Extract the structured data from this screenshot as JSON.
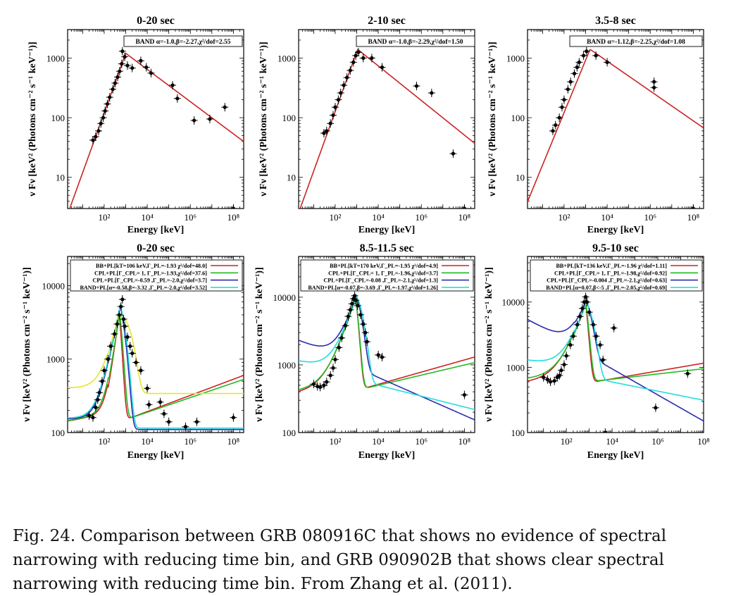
{
  "caption": "Fig. 24. Comparison between GRB 080916C that shows no evidence of spectral narrowing with reducing time bin, and GRB 090902B that shows clear spectral narrowing with reducing time bin. From Zhang et al. (2011).",
  "colors": {
    "red": "#cc2222",
    "green": "#22bb22",
    "blue": "#2b2bb0",
    "cyan": "#22dddd",
    "yellow": "#e6e62a",
    "black": "#000000"
  },
  "axis_labels": {
    "x": "Energy [keV]",
    "y": "ν F<sub>ν</sub> [keV² (Photons cm⁻² s⁻¹ keV⁻¹)]",
    "y_text": "ν Fν [keV² (Photons cm⁻² s⁻¹ keV⁻¹)]"
  },
  "chart_data": [
    {
      "type": "scatter",
      "title": "0-20 sec",
      "xlabel": "Energy [keV]",
      "ylabel": "ν Fν [keV² (Photons cm⁻² s⁻¹ keV⁻¹)]",
      "xscale": "log",
      "yscale": "log",
      "xlim": [
        2,
        300000000.0
      ],
      "ylim": [
        3,
        3000
      ],
      "x_ticks": [
        {
          "v": 100,
          "t": "10²"
        },
        {
          "v": 10000,
          "t": "10⁴"
        },
        {
          "v": 1000000,
          "t": "10⁶"
        },
        {
          "v": 100000000,
          "t": "10⁸"
        }
      ],
      "y_ticks": [
        {
          "v": 10,
          "t": "10"
        },
        {
          "v": 100,
          "t": "100"
        },
        {
          "v": 1000,
          "t": "1000"
        }
      ],
      "legend": [
        "BAND α=-1.0,β=-2.27,χ²/dof=2.55"
      ],
      "series": [
        {
          "name": "BAND α=-1.0,β=-2.27,χ²/dof=2.55",
          "color": "red",
          "model": "band",
          "peak": 1000,
          "peak_value": 1200,
          "alpha_slope": 1.0,
          "beta_slope": -0.27
        }
      ],
      "points": [
        [
          30,
          42
        ],
        [
          40,
          48
        ],
        [
          55,
          60
        ],
        [
          70,
          80
        ],
        [
          90,
          100
        ],
        [
          110,
          130
        ],
        [
          140,
          170
        ],
        [
          180,
          220
        ],
        [
          250,
          300
        ],
        [
          320,
          380
        ],
        [
          420,
          480
        ],
        [
          520,
          600
        ],
        [
          650,
          800
        ],
        [
          700,
          1300
        ],
        [
          900,
          1050
        ],
        [
          1200,
          750
        ],
        [
          2000,
          680
        ],
        [
          5000,
          900
        ],
        [
          9000,
          700
        ],
        [
          15000,
          560
        ],
        [
          150000,
          350
        ],
        [
          250000,
          210
        ],
        [
          1500000,
          90
        ],
        [
          8000000,
          95
        ],
        [
          40000000,
          150
        ],
        [
          100000000,
          3
        ]
      ]
    },
    {
      "type": "scatter",
      "title": "2-10 sec",
      "xlabel": "Energy [keV]",
      "ylabel": "ν Fν [keV² (Photons cm⁻² s⁻¹ keV⁻¹)]",
      "xscale": "log",
      "yscale": "log",
      "xlim": [
        2,
        300000000.0
      ],
      "ylim": [
        3,
        3000
      ],
      "x_ticks": [
        {
          "v": 100,
          "t": "10²"
        },
        {
          "v": 10000,
          "t": "10⁴"
        },
        {
          "v": 1000000,
          "t": "10⁶"
        },
        {
          "v": 100000000,
          "t": "10⁸"
        }
      ],
      "y_ticks": [
        {
          "v": 10,
          "t": "10"
        },
        {
          "v": 100,
          "t": "100"
        },
        {
          "v": 1000,
          "t": "1000"
        }
      ],
      "legend": [
        "BAND α=-1.0,β=-2.29,χ²/dof=1.50"
      ],
      "series": [
        {
          "name": "BAND α=-1.0,β=-2.29,χ²/dof=1.50",
          "color": "red",
          "model": "band",
          "peak": 1100,
          "peak_value": 1400,
          "alpha_slope": 1.0,
          "beta_slope": -0.29
        }
      ],
      "points": [
        [
          30,
          55
        ],
        [
          40,
          60
        ],
        [
          60,
          80
        ],
        [
          80,
          110
        ],
        [
          100,
          150
        ],
        [
          140,
          200
        ],
        [
          180,
          260
        ],
        [
          250,
          350
        ],
        [
          350,
          470
        ],
        [
          500,
          620
        ],
        [
          700,
          850
        ],
        [
          900,
          1100
        ],
        [
          1200,
          1250
        ],
        [
          2000,
          1000
        ],
        [
          5000,
          1000
        ],
        [
          15000,
          700
        ],
        [
          600000,
          340
        ],
        [
          3000000,
          260
        ],
        [
          30000000,
          25
        ],
        [
          100000000,
          3
        ]
      ]
    },
    {
      "type": "scatter",
      "title": "3.5-8 sec",
      "xlabel": "Energy [keV]",
      "ylabel": "ν Fν [keV² (Photons cm⁻² s⁻¹ keV⁻¹)]",
      "xscale": "log",
      "yscale": "log",
      "xlim": [
        2,
        300000000.0
      ],
      "ylim": [
        3,
        3000
      ],
      "x_ticks": [
        {
          "v": 100,
          "t": "10²"
        },
        {
          "v": 10000,
          "t": "10⁴"
        },
        {
          "v": 1000000,
          "t": "10⁶"
        },
        {
          "v": 100000000,
          "t": "10⁸"
        }
      ],
      "y_ticks": [
        {
          "v": 10,
          "t": "10"
        },
        {
          "v": 100,
          "t": "100"
        },
        {
          "v": 1000,
          "t": "1000"
        }
      ],
      "legend": [
        "BAND α=-1.12,β=-2.25,χ²/dof=1.08"
      ],
      "series": [
        {
          "name": "BAND α=-1.12,β=-2.25,χ²/dof=1.08",
          "color": "red",
          "model": "band",
          "peak": 1600,
          "peak_value": 1400,
          "alpha_slope": 0.88,
          "beta_slope": -0.25
        }
      ],
      "points": [
        [
          30,
          60
        ],
        [
          40,
          75
        ],
        [
          60,
          100
        ],
        [
          80,
          150
        ],
        [
          100,
          200
        ],
        [
          150,
          300
        ],
        [
          200,
          400
        ],
        [
          300,
          550
        ],
        [
          400,
          700
        ],
        [
          500,
          850
        ],
        [
          800,
          1100
        ],
        [
          1100,
          1300
        ],
        [
          3000,
          1100
        ],
        [
          10000,
          850
        ],
        [
          1500000,
          400
        ],
        [
          1500000,
          320
        ],
        [
          100000000,
          3
        ]
      ]
    },
    {
      "type": "scatter",
      "title": "0-20 sec",
      "xlabel": "Energy [keV]",
      "ylabel": "ν Fν [keV² (Photons cm⁻² s⁻¹ keV⁻¹)]",
      "xscale": "log",
      "yscale": "log",
      "xlim": [
        2,
        300000000.0
      ],
      "ylim": [
        100,
        25000
      ],
      "x_ticks": [
        {
          "v": 100,
          "t": "10²"
        },
        {
          "v": 10000,
          "t": "10⁴"
        },
        {
          "v": 1000000,
          "t": "10⁶"
        },
        {
          "v": 100000000,
          "t": "10⁸"
        }
      ],
      "y_ticks": [
        {
          "v": 100,
          "t": "100"
        },
        {
          "v": 1000,
          "t": "1000"
        },
        {
          "v": 10000,
          "t": "10000"
        }
      ],
      "legend": [
        "BB+PL[kT=106 keV,Γ_PL=-1.93 χ²/dof=48.0]",
        "CPL+PL[Γ_CPL= 1, Γ_PL=-1.93,χ²/dof=37.6]",
        "CPL+PL[Γ_CPL=-0.59 ,Γ_PL=-2.0,χ²/dof=3.7]",
        "BAND+PL[α=-0.58,β=-3.32 ,Γ_PL=-2.0,χ²/dof=3.52]"
      ],
      "series": [
        {
          "name": "BB+PL[kT=106 keV,Γ_PL=-1.93 χ²/dof=48.0]",
          "color": "red",
          "model": "bbpl",
          "peak": 500,
          "peak_value": 4000,
          "lowslope": 2.2,
          "highcut": 4,
          "pl_norm": 150,
          "pl_index": 0.11,
          "lowfloor": 220
        },
        {
          "name": "CPL+PL[Γ_CPL= 1, Γ_PL=-1.93,χ²/dof=37.6]",
          "color": "green",
          "model": "bbpl",
          "peak": 520,
          "peak_value": 4200,
          "lowslope": 2.0,
          "highcut": 3.3,
          "pl_norm": 150,
          "pl_index": 0.1,
          "lowfloor": 210
        },
        {
          "name": "CPL+PL[Γ_CPL=-0.59 ,Γ_PL=-2.0,χ²/dof=3.7]",
          "color": "blue",
          "model": "bbpl",
          "peak": 550,
          "peak_value": 5200,
          "lowslope": 1.5,
          "highcut": 1.8,
          "pl_norm": 110,
          "pl_index": 0.0,
          "lowfloor": 140
        },
        {
          "name": "BAND+PL[α=-0.58,β=-3.32 ,Γ_PL=-2.0,χ²/dof=3.52]",
          "color": "cyan",
          "model": "bbpl",
          "peak": 560,
          "peak_value": 5400,
          "lowslope": 1.45,
          "highcut": 1.6,
          "pl_norm": 115,
          "pl_index": 0.0,
          "lowfloor": 135
        },
        {
          "name": "",
          "color": "yellow",
          "model": "bbpl",
          "peak": 450,
          "peak_value": 3500,
          "lowslope": 1.3,
          "highcut": 0.45,
          "pl_norm": 340,
          "pl_index": 0.0,
          "lowfloor": 210
        }
      ],
      "points": [
        [
          20,
          170
        ],
        [
          30,
          160
        ],
        [
          40,
          220
        ],
        [
          50,
          280
        ],
        [
          60,
          350
        ],
        [
          80,
          500
        ],
        [
          100,
          700
        ],
        [
          150,
          1000
        ],
        [
          200,
          1500
        ],
        [
          300,
          2200
        ],
        [
          400,
          3000
        ],
        [
          500,
          4000
        ],
        [
          600,
          5200
        ],
        [
          700,
          6500
        ],
        [
          800,
          3500
        ],
        [
          900,
          2800
        ],
        [
          1200,
          2000
        ],
        [
          1600,
          1500
        ],
        [
          2000,
          1200
        ],
        [
          3000,
          900
        ],
        [
          5000,
          700
        ],
        [
          10000,
          400
        ],
        [
          12000,
          240
        ],
        [
          40000,
          260
        ],
        [
          60000,
          180
        ],
        [
          100000,
          140
        ],
        [
          600000,
          120
        ],
        [
          2000000,
          140
        ],
        [
          100000000,
          160
        ]
      ]
    },
    {
      "type": "scatter",
      "title": "8.5-11.5 sec",
      "xlabel": "Energy [keV]",
      "ylabel": "ν Fν [keV² (Photons cm⁻² s⁻¹ keV⁻¹)]",
      "xscale": "log",
      "yscale": "log",
      "xlim": [
        2,
        300000000.0
      ],
      "ylim": [
        100,
        40000
      ],
      "x_ticks": [
        {
          "v": 100,
          "t": "10²"
        },
        {
          "v": 10000,
          "t": "10⁴"
        },
        {
          "v": 1000000,
          "t": "10⁶"
        },
        {
          "v": 100000000,
          "t": "10⁸"
        }
      ],
      "y_ticks": [
        {
          "v": 100,
          "t": "100"
        },
        {
          "v": 1000,
          "t": "1000"
        },
        {
          "v": 10000,
          "t": "10000"
        }
      ],
      "legend": [
        "BB+PL[kT=170 keV,Γ_PL=-1.95 χ²/dof=4.9]",
        "CPL+PL[Γ_CPL= 1, Γ_PL=-1.96,χ²/dof=3.7]",
        "CPL+PL[Γ_CPL=-0.08 ,Γ_PL=-2.1,χ²/dof=1.3]",
        "BAND+PL[α=-0.07,β=-3.69 ,Γ_PL=-1.97,χ²/dof=1.26]"
      ],
      "series": [
        {
          "name": "BB+PL[kT=170 keV,Γ_PL=-1.95 χ²/dof=4.9]",
          "color": "red",
          "model": "bbpl",
          "peak": 900,
          "peak_value": 9500,
          "lowslope": 1.0,
          "highcut": 3.5,
          "pl_norm": 420,
          "pl_index": 0.09,
          "lowfloor": 470
        },
        {
          "name": "CPL+PL[Γ_CPL= 1, Γ_PL=-1.96,χ²/dof=3.7]",
          "color": "green",
          "model": "bbpl",
          "peak": 900,
          "peak_value": 9300,
          "lowslope": 1.0,
          "highcut": 3.2,
          "pl_norm": 420,
          "pl_index": 0.075,
          "lowfloor": 470
        },
        {
          "name": "CPL+PL[Γ_CPL=-0.08 ,Γ_PL=-2.1,χ²/dof=1.3]",
          "color": "blue",
          "model": "bbpl",
          "peak": 950,
          "peak_value": 9800,
          "lowslope": 1.0,
          "highcut": 1.5,
          "pl_norm": 900,
          "pl_index": -0.14,
          "lowfloor": 470
        },
        {
          "name": "BAND+PL[α=-0.07,β=-3.69 ,Γ_PL=-1.97,χ²/dof=1.26]",
          "color": "cyan",
          "model": "bbpl",
          "peak": 950,
          "peak_value": 9900,
          "lowslope": 1.0,
          "highcut": 1.1,
          "pl_norm": 600,
          "pl_index": -0.08,
          "lowfloor": 470
        }
      ],
      "points": [
        [
          10,
          520
        ],
        [
          15,
          480
        ],
        [
          20,
          470
        ],
        [
          30,
          500
        ],
        [
          40,
          560
        ],
        [
          60,
          700
        ],
        [
          80,
          900
        ],
        [
          100,
          1200
        ],
        [
          150,
          1800
        ],
        [
          200,
          2500
        ],
        [
          300,
          3800
        ],
        [
          400,
          5200
        ],
        [
          500,
          6500
        ],
        [
          600,
          8000
        ],
        [
          700,
          9500
        ],
        [
          800,
          10500
        ],
        [
          900,
          9000
        ],
        [
          1100,
          7500
        ],
        [
          1500,
          5500
        ],
        [
          2000,
          4000
        ],
        [
          2500,
          3000
        ],
        [
          3000,
          2200
        ],
        [
          10000,
          1400
        ],
        [
          15000,
          1300
        ],
        [
          100000000,
          360
        ]
      ]
    },
    {
      "type": "scatter",
      "title": "9.5-10 sec",
      "xlabel": "Energy [keV]",
      "ylabel": "ν Fν [keV² (Photons cm⁻² s⁻¹ keV⁻¹)]",
      "xscale": "log",
      "yscale": "log",
      "xlim": [
        2,
        100000000.0
      ],
      "ylim": [
        100,
        50000
      ],
      "x_ticks": [
        {
          "v": 100,
          "t": "10²"
        },
        {
          "v": 10000,
          "t": "10⁴"
        },
        {
          "v": 1000000,
          "t": "10⁶"
        },
        {
          "v": 100000000,
          "t": "10⁸"
        }
      ],
      "y_ticks": [
        {
          "v": 100,
          "t": "100"
        },
        {
          "v": 1000,
          "t": "1000"
        },
        {
          "v": 10000,
          "t": "10000"
        }
      ],
      "legend": [
        "BB+PL[kT=136 keV,Γ_PL=-1.96 χ²/dof=1.11]",
        "CPL+PL[Γ_CPL= 1, Γ_PL=-1.98,χ²/dof=0.92]",
        "CPL+PL[Γ_CPL=-0.004 ,Γ_PL=-2.1,χ²/dof=0.63]",
        "BAND+PL[α=0.07,β<-5 ,Γ_PL=-2.05,χ²/dof=0.69]"
      ],
      "series": [
        {
          "name": "BB+PL[kT=136 keV,Γ_PL=-1.96 χ²/dof=1.11]",
          "color": "red",
          "model": "bbpl",
          "peak": 700,
          "peak_value": 9000,
          "lowslope": 1.0,
          "highcut": 4,
          "pl_norm": 580,
          "pl_index": 0.06,
          "lowfloor": 620
        },
        {
          "name": "CPL+PL[Γ_CPL= 1, Γ_PL=-1.98,χ²/dof=0.92]",
          "color": "green",
          "model": "bbpl",
          "peak": 720,
          "peak_value": 8800,
          "lowslope": 1.0,
          "highcut": 3.5,
          "pl_norm": 600,
          "pl_index": 0.04,
          "lowfloor": 620
        },
        {
          "name": "CPL+PL[Γ_CPL=-0.004 ,Γ_PL=-2.1,χ²/dof=0.63]",
          "color": "blue",
          "model": "bbpl",
          "peak": 750,
          "peak_value": 9200,
          "lowslope": 1.0,
          "highcut": 1.6,
          "pl_norm": 1500,
          "pl_index": -0.2,
          "lowfloor": 620
        },
        {
          "name": "BAND+PL[α=0.07,β<-5 ,Γ_PL=-2.05,χ²/dof=0.69]",
          "color": "cyan",
          "model": "bbpl",
          "peak": 760,
          "peak_value": 9300,
          "lowslope": 1.0,
          "highcut": 1.2,
          "pl_norm": 700,
          "pl_index": -0.07,
          "lowfloor": 620
        }
      ],
      "points": [
        [
          10,
          700
        ],
        [
          15,
          650
        ],
        [
          20,
          600
        ],
        [
          30,
          620
        ],
        [
          40,
          700
        ],
        [
          50,
          750
        ],
        [
          60,
          900
        ],
        [
          80,
          1100
        ],
        [
          100,
          1500
        ],
        [
          150,
          2200
        ],
        [
          200,
          3000
        ],
        [
          300,
          4500
        ],
        [
          400,
          6000
        ],
        [
          500,
          8000
        ],
        [
          600,
          10000
        ],
        [
          700,
          12000
        ],
        [
          800,
          10000
        ],
        [
          1000,
          7000
        ],
        [
          1500,
          4500
        ],
        [
          2000,
          3000
        ],
        [
          3000,
          2200
        ],
        [
          4000,
          1300
        ],
        [
          5000,
          100
        ],
        [
          12000,
          4000
        ],
        [
          800000,
          240
        ],
        [
          20000000,
          800
        ]
      ]
    }
  ]
}
